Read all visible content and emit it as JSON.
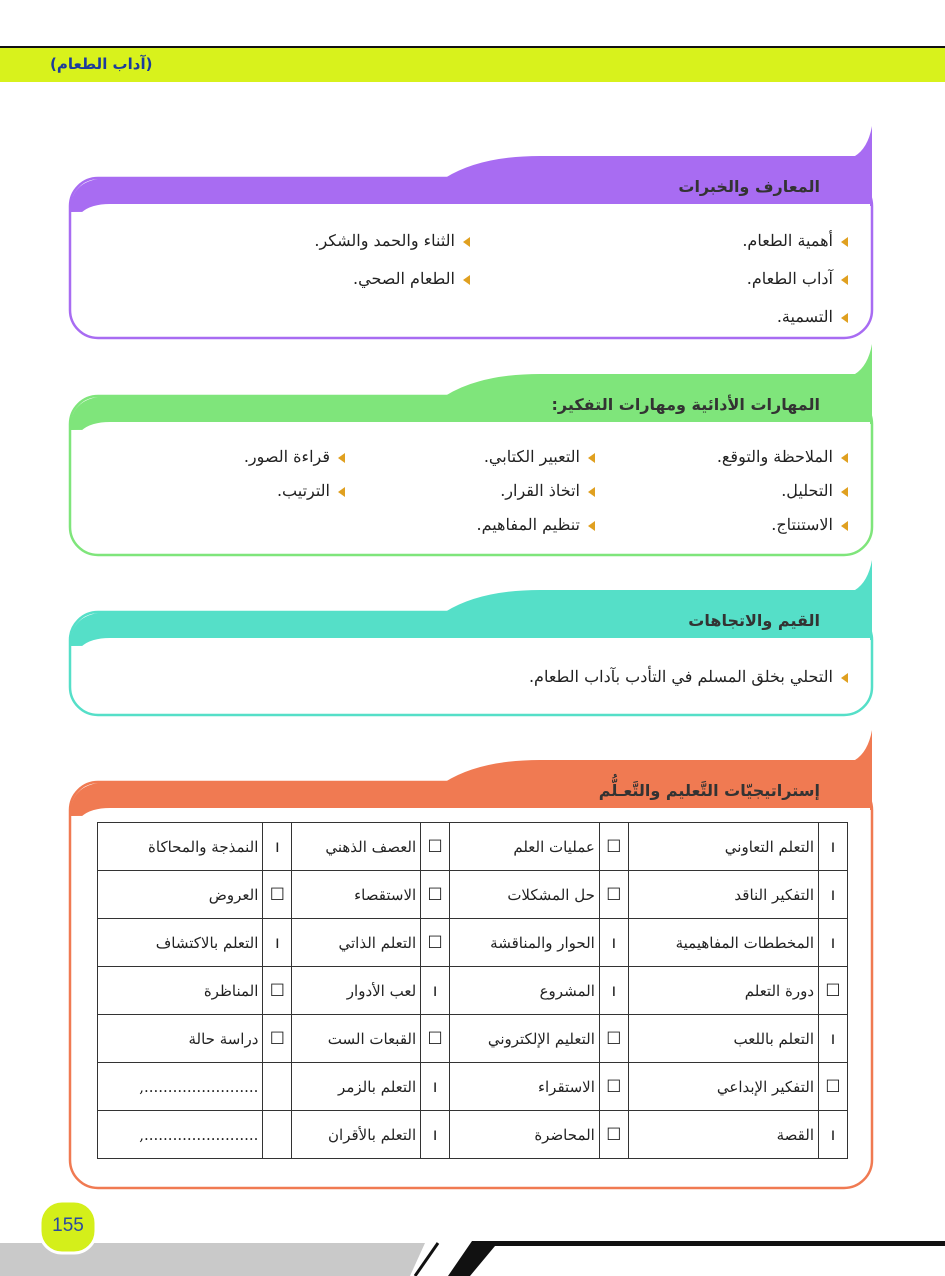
{
  "header": {
    "title": "(آداب الطعام)"
  },
  "sections": [
    {
      "title": "المعارف والخبرات",
      "color": "#a86cf2",
      "columns": [
        [
          "أهمية الطعام.",
          "آداب الطعام.",
          "التسمية."
        ],
        [
          "الثناء والحمد والشكر.",
          "الطعام الصحي."
        ]
      ]
    },
    {
      "title": "المهارات الأدائية ومهارات التفكير:",
      "color": "#7fe57b",
      "columns": [
        [
          "الملاحظة والتوقع.",
          "التحليل.",
          "الاستنتاج."
        ],
        [
          "التعبير الكتابي.",
          "اتخاذ القرار.",
          "تنظيم المفاهيم."
        ],
        [
          "قراءة الصور.",
          "الترتيب."
        ]
      ]
    },
    {
      "title": "القيم والاتجاهات",
      "color": "#55dfc8",
      "columns": [
        [
          "التحلي بخلق المسلم في التأدب بآداب الطعام."
        ]
      ]
    },
    {
      "title": "إستراتيجيّات التَّعليم والتَّعـلُّم",
      "color": "#f07a52",
      "columns": []
    }
  ],
  "table": {
    "rows": [
      [
        {
          "mark": "ı",
          "text": "التعلم التعاوني"
        },
        {
          "mark": "☐",
          "text": "عمليات العلم"
        },
        {
          "mark": "☐",
          "text": "العصف الذهني"
        },
        {
          "mark": "ı",
          "text": "النمذجة والمحاكاة"
        }
      ],
      [
        {
          "mark": "ı",
          "text": "التفكير الناقد"
        },
        {
          "mark": "☐",
          "text": "حل المشكلات"
        },
        {
          "mark": "☐",
          "text": "الاستقصاء"
        },
        {
          "mark": "☐",
          "text": "العروض"
        }
      ],
      [
        {
          "mark": "ı",
          "text": "المخططات المفاهيمية"
        },
        {
          "mark": "ı",
          "text": "الحوار والمناقشة"
        },
        {
          "mark": "☐",
          "text": "التعلم الذاتي"
        },
        {
          "mark": "ı",
          "text": "التعلم بالاكتشاف"
        }
      ],
      [
        {
          "mark": "☐",
          "text": "دورة التعلم"
        },
        {
          "mark": "ı",
          "text": "المشروع"
        },
        {
          "mark": "ı",
          "text": "لعب الأدوار"
        },
        {
          "mark": "☐",
          "text": "المناظرة"
        }
      ],
      [
        {
          "mark": "ı",
          "text": "التعلم باللعب"
        },
        {
          "mark": "☐",
          "text": "التعليم الإلكتروني"
        },
        {
          "mark": "☐",
          "text": "القبعات الست"
        },
        {
          "mark": "☐",
          "text": "دراسة حالة"
        }
      ],
      [
        {
          "mark": "☐",
          "text": "التفكير الإبداعي"
        },
        {
          "mark": "☐",
          "text": "الاستقراء"
        },
        {
          "mark": "ı",
          "text": "التعلم بالزمر"
        },
        {
          "text": "........................,"
        }
      ],
      [
        {
          "mark": "ı",
          "text": "القصة"
        },
        {
          "mark": "☐",
          "text": "المحاضرة"
        },
        {
          "mark": "ı",
          "text": "التعلم بالأقران"
        },
        {
          "text": "........................,"
        }
      ]
    ]
  },
  "page_number": "155"
}
